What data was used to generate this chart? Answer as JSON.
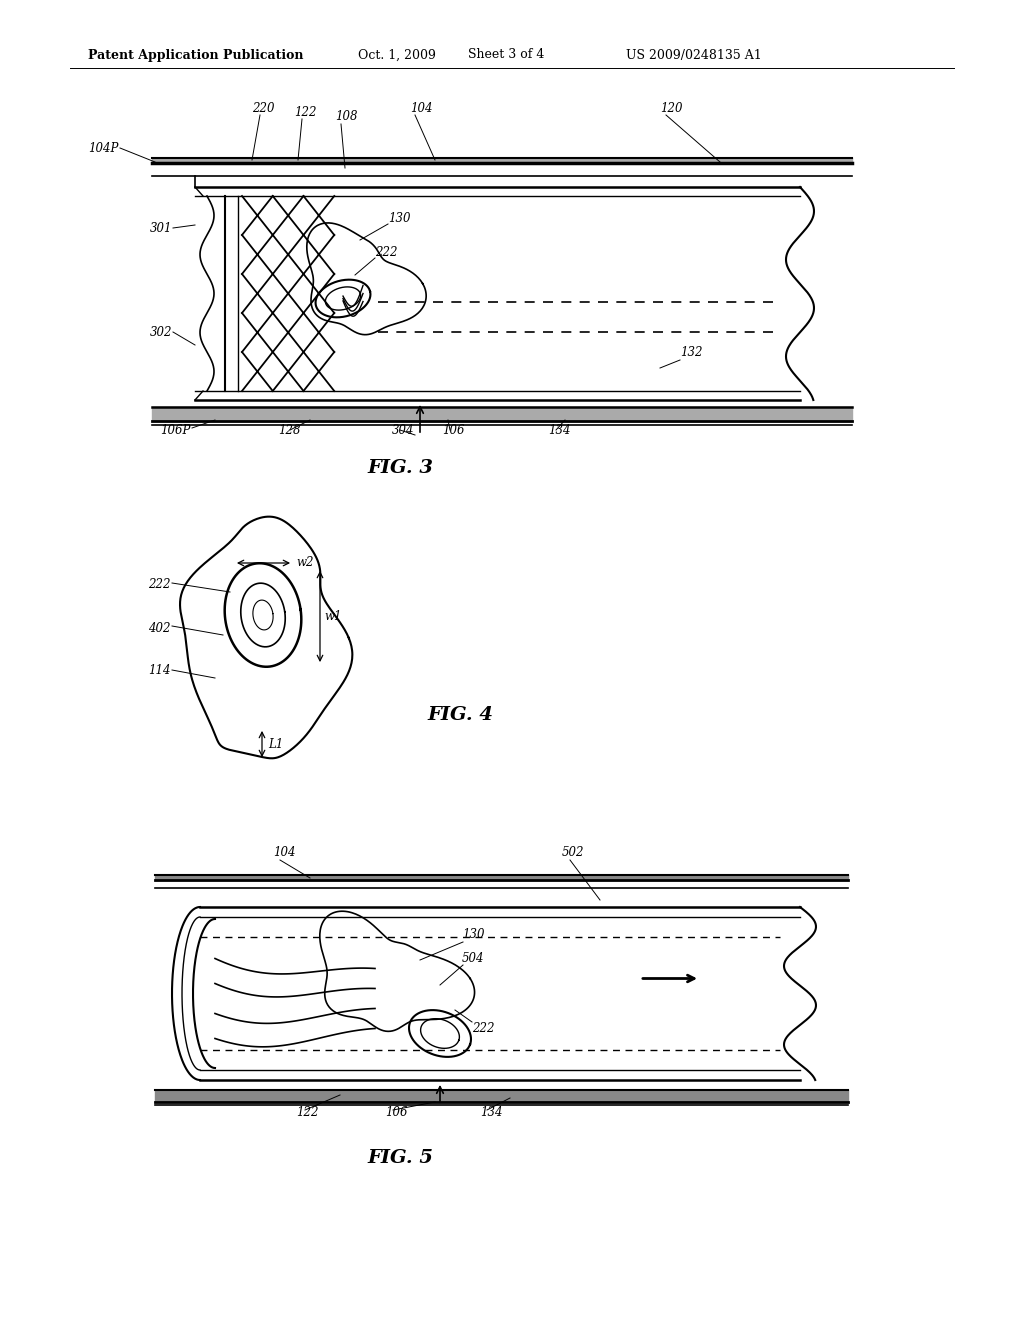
{
  "bg_color": "#ffffff",
  "header_text": "Patent Application Publication",
  "header_date": "Oct. 1, 2009",
  "header_sheet": "Sheet 3 of 4",
  "header_patent": "US 2009/0248135 A1",
  "text_color": "#000000",
  "line_color": "#000000"
}
